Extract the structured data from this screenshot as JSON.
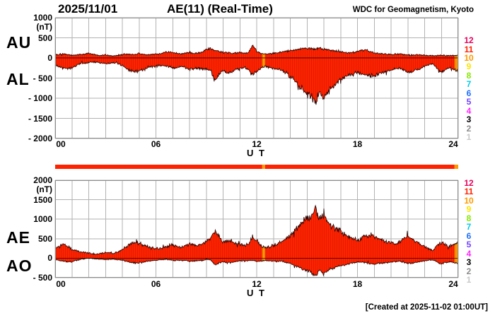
{
  "header": {
    "date": "2025/11/01",
    "title": "AE(11) (Real-Time)",
    "source": "WDC for Geomagnetism, Kyoto"
  },
  "footer": {
    "created": "[Created at 2025-11-02 01:00UT]"
  },
  "xaxis": {
    "label": "U T",
    "ticks": [
      {
        "label": "00",
        "hour": 0
      },
      {
        "label": "06",
        "hour": 6
      },
      {
        "label": "12",
        "hour": 12
      },
      {
        "label": "18",
        "hour": 18
      },
      {
        "label": "24",
        "hour": 24
      }
    ]
  },
  "top_panel": {
    "label_upper": "AU",
    "label_lower": "AL",
    "unit": "(nT)",
    "yticks": [
      {
        "label": "1000",
        "value": 1000
      },
      {
        "label": "500",
        "value": 500
      },
      {
        "label": "0",
        "value": 0
      },
      {
        "label": "- 500",
        "value": -500
      },
      {
        "label": "- 1000",
        "value": -1000
      },
      {
        "label": "- 1500",
        "value": -1500
      },
      {
        "label": "- 2000",
        "value": -2000
      }
    ]
  },
  "bottom_panel": {
    "label_upper": "AE",
    "label_lower": "AO",
    "unit": "(nT)",
    "yticks": [
      {
        "label": "2000",
        "value": 2000
      },
      {
        "label": "1500",
        "value": 1500
      },
      {
        "label": "1000",
        "value": 1000
      },
      {
        "label": "500",
        "value": 500
      },
      {
        "label": "0",
        "value": 0
      },
      {
        "label": "- 500",
        "value": -500
      }
    ]
  },
  "legend": {
    "meaning": "number of contributing stations",
    "levels": [
      {
        "label": "12",
        "color": "#E8005A"
      },
      {
        "label": "11",
        "color": "#FF2200"
      },
      {
        "label": "10",
        "color": "#FF9900"
      },
      {
        "label": "9",
        "color": "#FFE400"
      },
      {
        "label": "8",
        "color": "#86E800"
      },
      {
        "label": "7",
        "color": "#00CAE8"
      },
      {
        "label": "6",
        "color": "#2070FF"
      },
      {
        "label": "5",
        "color": "#7040FF"
      },
      {
        "label": "4",
        "color": "#FF28FF"
      },
      {
        "label": "3",
        "color": "#000000"
      },
      {
        "label": "2",
        "color": "#8C8C8C"
      },
      {
        "label": "1",
        "color": "#C8C8C8"
      }
    ]
  },
  "station_bar": {
    "segments": [
      {
        "start_hour": 0,
        "end_hour": 12.33,
        "stations": 11
      },
      {
        "start_hour": 12.33,
        "end_hour": 12.5,
        "stations": 10
      },
      {
        "start_hour": 12.5,
        "end_hour": 23.78,
        "stations": 11
      },
      {
        "start_hour": 23.78,
        "end_hour": 24,
        "stations": 10
      }
    ]
  },
  "colors": {
    "outline": "#250300",
    "grid": "#B2B2B2",
    "frame": "#8C8C8C",
    "background": "#FFFFFF"
  },
  "chart_data": [
    {
      "type": "area",
      "panel": "top",
      "title": "AU / AL auroral electrojet indices, 1-min real-time",
      "ylabel": "nT",
      "ylim": [
        -2000,
        1000
      ],
      "xlim_hours": [
        0,
        24
      ],
      "grid": true,
      "x_start_hour": 0,
      "x_step_hours": 0.25,
      "series": [
        {
          "name": "AU",
          "values": [
            80,
            95,
            105,
            85,
            65,
            75,
            85,
            95,
            115,
            95,
            70,
            65,
            75,
            60,
            55,
            70,
            90,
            100,
            85,
            95,
            110,
            95,
            85,
            90,
            95,
            110,
            130,
            150,
            140,
            115,
            100,
            120,
            135,
            110,
            125,
            150,
            200,
            250,
            190,
            160,
            140,
            130,
            120,
            125,
            140,
            120,
            130,
            330,
            160,
            110,
            95,
            105,
            115,
            130,
            150,
            170,
            185,
            200,
            215,
            235,
            255,
            240,
            225,
            235,
            215,
            195,
            185,
            170,
            155,
            135,
            125,
            140,
            155,
            185,
            205,
            160,
            130,
            115,
            105,
            90,
            85,
            95,
            105,
            85,
            70,
            75,
            80,
            70,
            65,
            60,
            55,
            60,
            65,
            60,
            55,
            60,
            65
          ]
        },
        {
          "name": "AL",
          "values": [
            -160,
            -220,
            -260,
            -280,
            -240,
            -190,
            -150,
            -130,
            -120,
            -110,
            -105,
            -120,
            -140,
            -130,
            -120,
            -140,
            -190,
            -260,
            -310,
            -340,
            -330,
            -290,
            -250,
            -220,
            -200,
            -190,
            -185,
            -210,
            -250,
            -230,
            -210,
            -240,
            -290,
            -260,
            -245,
            -265,
            -280,
            -320,
            -550,
            -420,
            -310,
            -380,
            -350,
            -290,
            -260,
            -245,
            -260,
            -440,
            -330,
            -260,
            -210,
            -230,
            -255,
            -280,
            -310,
            -380,
            -450,
            -560,
            -690,
            -800,
            -890,
            -950,
            -1140,
            -780,
            -1040,
            -820,
            -700,
            -620,
            -540,
            -470,
            -420,
            -380,
            -355,
            -390,
            -430,
            -455,
            -430,
            -380,
            -350,
            -320,
            -300,
            -270,
            -255,
            -300,
            -350,
            -330,
            -300,
            -260,
            -200,
            -160,
            -150,
            -260,
            -360,
            -280,
            -240,
            -300,
            -330
          ]
        }
      ]
    },
    {
      "type": "area",
      "panel": "bottom",
      "title": "AE / AO auroral electrojet indices, 1-min real-time",
      "ylabel": "nT",
      "ylim": [
        -500,
        2000
      ],
      "xlim_hours": [
        0,
        24
      ],
      "grid": true,
      "x_start_hour": 0,
      "x_step_hours": 0.25,
      "series": [
        {
          "name": "AE",
          "values": [
            260,
            310,
            360,
            300,
            230,
            190,
            160,
            140,
            130,
            115,
            110,
            125,
            150,
            140,
            130,
            155,
            220,
            300,
            360,
            395,
            385,
            340,
            295,
            265,
            250,
            255,
            270,
            310,
            345,
            305,
            275,
            315,
            370,
            330,
            320,
            360,
            420,
            520,
            700,
            540,
            400,
            460,
            430,
            370,
            350,
            330,
            350,
            560,
            440,
            330,
            270,
            300,
            330,
            370,
            420,
            500,
            580,
            700,
            840,
            960,
            1060,
            1120,
            1300,
            1000,
            1160,
            900,
            820,
            760,
            680,
            600,
            540,
            500,
            470,
            520,
            570,
            600,
            570,
            500,
            460,
            430,
            400,
            370,
            420,
            520,
            560,
            480,
            420,
            370,
            290,
            240,
            210,
            320,
            420,
            340,
            300,
            360,
            400
          ]
        },
        {
          "name": "AO",
          "values": [
            -40,
            -60,
            -75,
            -95,
            -85,
            -55,
            -35,
            -20,
            -5,
            -10,
            -20,
            -25,
            -35,
            -35,
            -30,
            -35,
            -50,
            -80,
            -110,
            -120,
            -110,
            -95,
            -80,
            -65,
            -55,
            -40,
            -30,
            -30,
            -55,
            -60,
            -55,
            -60,
            -80,
            -75,
            -60,
            -60,
            -40,
            -35,
            -180,
            -130,
            -85,
            -125,
            -115,
            -85,
            -60,
            -65,
            -65,
            -55,
            -85,
            -75,
            -60,
            -65,
            -70,
            -75,
            -80,
            -105,
            -130,
            -180,
            -235,
            -280,
            -320,
            -360,
            -440,
            -300,
            -420,
            -310,
            -260,
            -225,
            -190,
            -170,
            -150,
            -120,
            -100,
            -105,
            -115,
            -145,
            -150,
            -130,
            -120,
            -115,
            -105,
            -90,
            -75,
            -105,
            -140,
            -125,
            -110,
            -95,
            -70,
            -50,
            -45,
            -105,
            -150,
            -110,
            -95,
            -120,
            -135
          ]
        }
      ]
    }
  ]
}
